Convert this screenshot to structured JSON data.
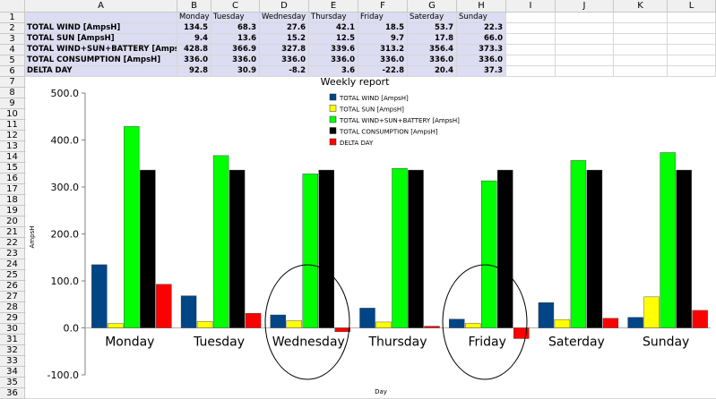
{
  "sheet": {
    "columns": [
      "A",
      "B",
      "C",
      "D",
      "E",
      "F",
      "G",
      "H",
      "I",
      "J",
      "K",
      "L"
    ],
    "rows": [
      "1",
      "2",
      "3",
      "4",
      "5",
      "6",
      "7",
      "8",
      "9",
      "10",
      "11",
      "12",
      "13",
      "14",
      "15",
      "16",
      "17",
      "18",
      "19",
      "20",
      "21",
      "22",
      "23",
      "24",
      "25",
      "26",
      "27",
      "28",
      "29",
      "30",
      "31",
      "32",
      "33",
      "34",
      "35",
      "36"
    ],
    "days": [
      "Monday",
      "Tuesday",
      "Wednesday",
      "Thursday",
      "Friday",
      "Saterday",
      "Sunday"
    ],
    "table": [
      {
        "label": "TOTAL WIND [AmpsH]",
        "values": [
          "134.5",
          "68.3",
          "27.6",
          "42.1",
          "18.5",
          "53.7",
          "22.3"
        ]
      },
      {
        "label": "TOTAL SUN [AmpsH]",
        "values": [
          "9.4",
          "13.6",
          "15.2",
          "12.5",
          "9.7",
          "17.8",
          "66.0"
        ]
      },
      {
        "label": "TOTAL WIND+SUN+BATTERY [AmpsH]",
        "values": [
          "428.8",
          "366.9",
          "327.8",
          "339.6",
          "313.2",
          "356.4",
          "373.3"
        ]
      },
      {
        "label": "TOTAL CONSUMPTION [AmpsH]",
        "values": [
          "336.0",
          "336.0",
          "336.0",
          "336.0",
          "336.0",
          "336.0",
          "336.0"
        ]
      },
      {
        "label": "DELTA DAY",
        "values": [
          "92.8",
          "30.9",
          "-8.2",
          "3.6",
          "-22.8",
          "20.4",
          "37.3"
        ]
      }
    ]
  },
  "chart_data": {
    "type": "bar",
    "title": "Weekly report",
    "xlabel": "Day",
    "ylabel": "AmpsH",
    "ylim": [
      -100,
      500
    ],
    "yticks": [
      "500.0",
      "400.0",
      "300.0",
      "200.0",
      "100.0",
      "0.0",
      "-100.0"
    ],
    "grid": false,
    "legend_position": "top-center",
    "categories": [
      "Monday",
      "Tuesday",
      "Wednesday",
      "Thursday",
      "Friday",
      "Saterday",
      "Sunday"
    ],
    "series": [
      {
        "name": "TOTAL WIND [AmpsH]",
        "color": "#004586",
        "values": [
          134.5,
          68.3,
          27.6,
          42.1,
          18.5,
          53.7,
          22.3
        ]
      },
      {
        "name": "TOTAL SUN [AmpsH]",
        "color": "#ffff00",
        "values": [
          9.4,
          13.6,
          15.2,
          12.5,
          9.7,
          17.8,
          66.0
        ]
      },
      {
        "name": "TOTAL WIND+SUN+BATTERY [AmpsH]",
        "color": "#00ff00",
        "values": [
          428.8,
          366.9,
          327.8,
          339.6,
          313.2,
          356.4,
          373.3
        ]
      },
      {
        "name": "TOTAL CONSUMPTION [AmpsH]",
        "color": "#000000",
        "values": [
          336.0,
          336.0,
          336.0,
          336.0,
          336.0,
          336.0,
          336.0
        ]
      },
      {
        "name": "DELTA DAY",
        "color": "#ff0000",
        "values": [
          92.8,
          30.9,
          -8.2,
          3.6,
          -22.8,
          20.4,
          37.3
        ]
      }
    ],
    "annotations": [
      "circle around Wednesday",
      "circle around Friday"
    ]
  }
}
